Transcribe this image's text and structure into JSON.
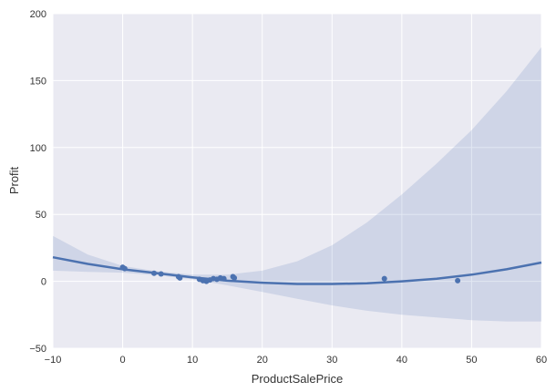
{
  "chart_data": {
    "type": "scatter",
    "xlabel": "ProductSalePrice",
    "ylabel": "Profit",
    "xlim": [
      -10,
      60
    ],
    "ylim": [
      -50,
      200
    ],
    "xticks": [
      -10,
      0,
      10,
      20,
      30,
      40,
      50,
      60
    ],
    "yticks": [
      -50,
      0,
      50,
      100,
      150,
      200
    ],
    "x_tick_labels": [
      "−10",
      "0",
      "10",
      "20",
      "30",
      "40",
      "50",
      "60"
    ],
    "y_tick_labels": [
      "−50",
      "0",
      "50",
      "100",
      "150",
      "200"
    ],
    "grid": true,
    "style": {
      "background": "#eaeaf2",
      "grid_color": "#ffffff",
      "series_color": "#4c72b0",
      "band_color": "#4c72b0"
    },
    "points": [
      {
        "x": 0,
        "y": 10.5
      },
      {
        "x": 0.3,
        "y": 9.5
      },
      {
        "x": 4.5,
        "y": 6
      },
      {
        "x": 5.5,
        "y": 5.5
      },
      {
        "x": 8,
        "y": 3.5
      },
      {
        "x": 8.2,
        "y": 2.5
      },
      {
        "x": 11,
        "y": 1.5
      },
      {
        "x": 11.5,
        "y": 0.5
      },
      {
        "x": 12,
        "y": 0
      },
      {
        "x": 12.5,
        "y": 1
      },
      {
        "x": 13,
        "y": 2
      },
      {
        "x": 13.5,
        "y": 1.5
      },
      {
        "x": 14,
        "y": 2.5
      },
      {
        "x": 14.5,
        "y": 2
      },
      {
        "x": 15.8,
        "y": 3.5
      },
      {
        "x": 16,
        "y": 2.5
      },
      {
        "x": 37.5,
        "y": 2
      },
      {
        "x": 48,
        "y": 0.5
      }
    ],
    "fit_line": {
      "x": [
        -10,
        -5,
        0,
        5,
        10,
        15,
        20,
        25,
        30,
        35,
        40,
        45,
        50,
        55,
        60
      ],
      "y": [
        18,
        13,
        9,
        6,
        3,
        0.5,
        -1,
        -2,
        -2,
        -1.5,
        0,
        2,
        5,
        9,
        14
      ]
    },
    "confidence_band": {
      "x": [
        -10,
        -5,
        0,
        5,
        10,
        15,
        20,
        25,
        30,
        35,
        40,
        45,
        50,
        55,
        60
      ],
      "upper": [
        34,
        20,
        11.5,
        7.5,
        5,
        5,
        8,
        15,
        27,
        44,
        65,
        88,
        113,
        142,
        175
      ],
      "lower": [
        8,
        7,
        6.5,
        4.5,
        1.5,
        -3,
        -8,
        -13,
        -18,
        -22,
        -25,
        -27,
        -29,
        -30,
        -30
      ]
    }
  }
}
